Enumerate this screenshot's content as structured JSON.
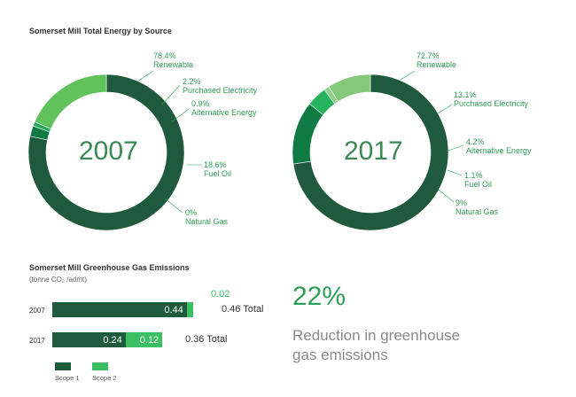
{
  "energy": {
    "title": "Somerset Mill Total Energy by Source",
    "charts": [
      {
        "year": "2007",
        "slices": [
          {
            "name": "Renewable",
            "pct": 78.4,
            "pct_label": "78.4%",
            "color": "#1e5a3b"
          },
          {
            "name": "Purchased Electricity",
            "pct": 2.2,
            "pct_label": "2.2%",
            "color": "#0f7a43"
          },
          {
            "name": "Alternative Energy",
            "pct": 0.9,
            "pct_label": "0.9%",
            "color": "#26a95c"
          },
          {
            "name": "Fuel Oil",
            "pct": 18.6,
            "pct_label": "18.6%",
            "color": "#5fc25b"
          },
          {
            "name": "Natural Gas",
            "pct": 0,
            "pct_label": "0%",
            "color": "#9dd48c"
          }
        ]
      },
      {
        "year": "2017",
        "slices": [
          {
            "name": "Renewable",
            "pct": 72.7,
            "pct_label": "72.7%",
            "color": "#1e5a3b"
          },
          {
            "name": "Purchased Electricity",
            "pct": 13.1,
            "pct_label": "13.1%",
            "color": "#0f7a43"
          },
          {
            "name": "Alternative Energy",
            "pct": 4.2,
            "pct_label": "4.2%",
            "color": "#26b35d"
          },
          {
            "name": "Fuel Oil",
            "pct": 1.1,
            "pct_label": "1.1%",
            "color": "#8fd08a"
          },
          {
            "name": "Natural Gas",
            "pct": 9,
            "pct_label": "9%",
            "color": "#84c97a"
          }
        ]
      }
    ]
  },
  "ghg": {
    "title": "Somerset Mill Greenhouse Gas Emissions",
    "unit_line": "(tonne CO₂ /admt)",
    "scope1_color": "#1e5a3b",
    "scope2_color": "#3bbf63",
    "rows": [
      {
        "year": "2007",
        "scope1": 0.44,
        "scope1_label": "0.44",
        "scope2": 0.02,
        "scope2_label": "0.02",
        "total_label": "0.46 Total"
      },
      {
        "year": "2017",
        "scope1": 0.24,
        "scope1_label": "0.24",
        "scope2": 0.12,
        "scope2_label": "0.12",
        "total_label": "0.36 Total"
      }
    ],
    "legend": [
      "Scope 1",
      "Scope 2"
    ]
  },
  "highlight": {
    "value": "22%",
    "line1": "Reduction in greenhouse",
    "line2": "gas emissions"
  },
  "chart_data": [
    {
      "type": "pie",
      "title": "Somerset Mill Total Energy by Source",
      "center_label": "2007",
      "categories": [
        "Renewable",
        "Purchased Electricity",
        "Alternative Energy",
        "Fuel Oil",
        "Natural Gas"
      ],
      "values": [
        78.4,
        2.2,
        0.9,
        18.6,
        0
      ]
    },
    {
      "type": "pie",
      "center_label": "2017",
      "categories": [
        "Renewable",
        "Purchased Electricity",
        "Alternative Energy",
        "Fuel Oil",
        "Natural Gas"
      ],
      "values": [
        72.7,
        13.1,
        4.2,
        1.1,
        9
      ]
    },
    {
      "type": "bar",
      "title": "Somerset Mill Greenhouse Gas Emissions",
      "ylabel": "(tonne CO₂ /admt)",
      "categories": [
        "2007",
        "2017"
      ],
      "series": [
        {
          "name": "Scope 1",
          "values": [
            0.44,
            0.24
          ]
        },
        {
          "name": "Scope 2",
          "values": [
            0.02,
            0.12
          ]
        }
      ],
      "stacked": true,
      "orientation": "horizontal"
    }
  ]
}
